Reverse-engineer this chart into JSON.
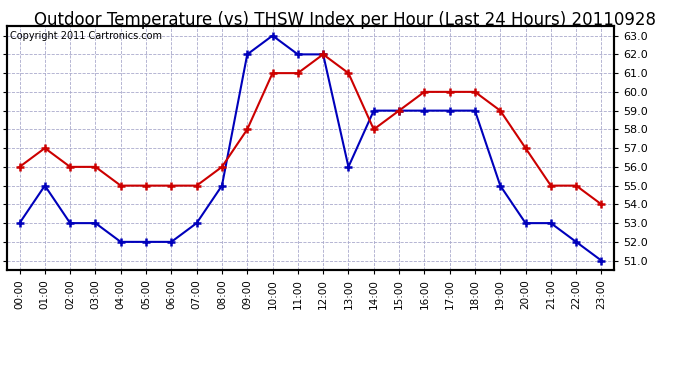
{
  "title": "Outdoor Temperature (vs) THSW Index per Hour (Last 24 Hours) 20110928",
  "copyright": "Copyright 2011 Cartronics.com",
  "hours": [
    "00:00",
    "01:00",
    "02:00",
    "03:00",
    "04:00",
    "05:00",
    "06:00",
    "07:00",
    "08:00",
    "09:00",
    "10:00",
    "11:00",
    "12:00",
    "13:00",
    "14:00",
    "15:00",
    "16:00",
    "17:00",
    "18:00",
    "19:00",
    "20:00",
    "21:00",
    "22:00",
    "23:00"
  ],
  "blue_data": [
    53.0,
    55.0,
    53.0,
    53.0,
    52.0,
    52.0,
    52.0,
    53.0,
    55.0,
    62.0,
    63.0,
    62.0,
    62.0,
    56.0,
    59.0,
    59.0,
    59.0,
    59.0,
    59.0,
    55.0,
    53.0,
    53.0,
    52.0,
    51.0
  ],
  "red_data": [
    56.0,
    57.0,
    56.0,
    56.0,
    55.0,
    55.0,
    55.0,
    55.0,
    56.0,
    58.0,
    61.0,
    61.0,
    62.0,
    61.0,
    58.0,
    59.0,
    60.0,
    60.0,
    60.0,
    59.0,
    57.0,
    55.0,
    55.0,
    54.0
  ],
  "blue_color": "#0000bb",
  "red_color": "#cc0000",
  "ylim_min": 51.0,
  "ylim_max": 63.0,
  "ytick_step": 1.0,
  "bg_color": "#ffffff",
  "grid_color": "#aaaacc",
  "title_fontsize": 12,
  "copyright_fontsize": 7
}
